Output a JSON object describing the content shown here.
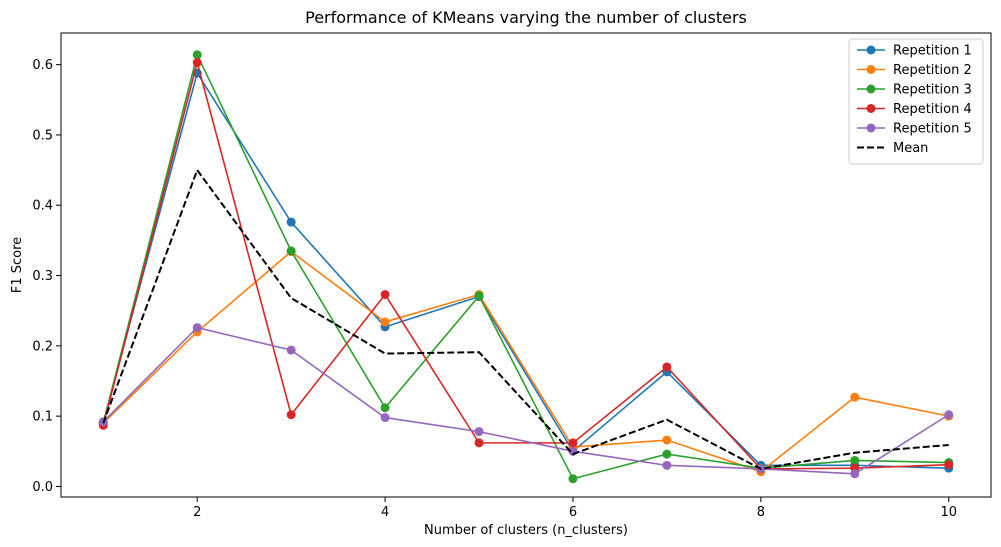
{
  "chart_data": {
    "type": "line",
    "title": "Performance of KMeans varying the number of clusters",
    "xlabel": "Number of clusters (n_clusters)",
    "ylabel": "F1 Score",
    "x": [
      1,
      2,
      3,
      4,
      5,
      6,
      7,
      8,
      9,
      10
    ],
    "xlim": [
      0.55,
      10.45
    ],
    "ylim": [
      -0.015,
      0.645
    ],
    "xticks": [
      2,
      4,
      6,
      8,
      10
    ],
    "xtick_labels": [
      "2",
      "4",
      "6",
      "8",
      "10"
    ],
    "yticks": [
      0.0,
      0.1,
      0.2,
      0.3,
      0.4,
      0.5,
      0.6
    ],
    "ytick_labels": [
      "0.0",
      "0.1",
      "0.2",
      "0.3",
      "0.4",
      "0.5",
      "0.6"
    ],
    "grid": false,
    "legend_position": "top-right",
    "series": [
      {
        "name": "Repetition 1",
        "color": "#1f77b4",
        "marker": "circle",
        "style": "solid",
        "values": [
          0.091,
          0.588,
          0.376,
          0.227,
          0.27,
          0.05,
          0.163,
          0.03,
          0.03,
          0.026
        ]
      },
      {
        "name": "Repetition 2",
        "color": "#ff7f0e",
        "marker": "circle",
        "style": "solid",
        "values": [
          0.09,
          0.22,
          0.334,
          0.234,
          0.273,
          0.056,
          0.066,
          0.021,
          0.127,
          0.1
        ]
      },
      {
        "name": "Repetition 3",
        "color": "#2ca02c",
        "marker": "circle",
        "style": "solid",
        "values": [
          0.09,
          0.614,
          0.335,
          0.112,
          0.271,
          0.011,
          0.046,
          0.026,
          0.037,
          0.034
        ]
      },
      {
        "name": "Repetition 4",
        "color": "#d62728",
        "marker": "circle",
        "style": "solid",
        "values": [
          0.087,
          0.603,
          0.102,
          0.273,
          0.062,
          0.062,
          0.17,
          0.025,
          0.026,
          0.031
        ]
      },
      {
        "name": "Repetition 5",
        "color": "#9467bd",
        "marker": "circle",
        "style": "solid",
        "values": [
          0.092,
          0.226,
          0.194,
          0.098,
          0.078,
          0.05,
          0.03,
          0.025,
          0.018,
          0.102
        ]
      },
      {
        "name": "Mean",
        "color": "#000000",
        "marker": "none",
        "style": "dashed",
        "values": [
          0.09,
          0.45,
          0.268,
          0.189,
          0.191,
          0.046,
          0.095,
          0.025,
          0.048,
          0.059
        ]
      }
    ]
  }
}
